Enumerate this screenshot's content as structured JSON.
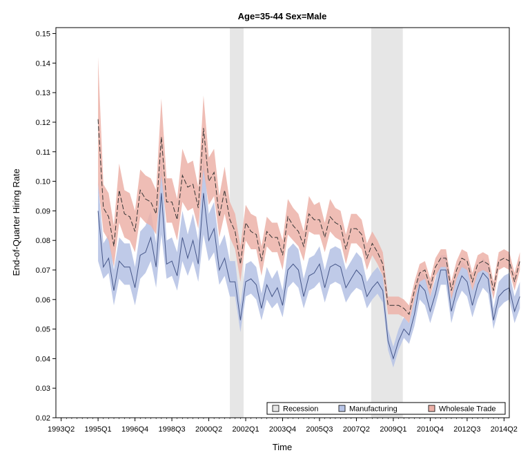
{
  "chart_data": {
    "type": "line",
    "title": "Age=35-44 Sex=Male",
    "xlabel": "Time",
    "ylabel": "End-of-Quarter Hiring Rate",
    "xlim": [
      1993.0,
      2014.5
    ],
    "ylim": [
      0.02,
      0.152
    ],
    "x_ticks": [
      {
        "t": 1993.25,
        "label": "1993Q2"
      },
      {
        "t": 1995.0,
        "label": "1995Q1"
      },
      {
        "t": 1996.75,
        "label": "1996Q4"
      },
      {
        "t": 1998.5,
        "label": "1998Q3"
      },
      {
        "t": 2000.25,
        "label": "2000Q2"
      },
      {
        "t": 2002.0,
        "label": "2002Q1"
      },
      {
        "t": 2003.75,
        "label": "2003Q4"
      },
      {
        "t": 2005.5,
        "label": "2005Q3"
      },
      {
        "t": 2007.25,
        "label": "2007Q2"
      },
      {
        "t": 2009.0,
        "label": "2009Q1"
      },
      {
        "t": 2010.75,
        "label": "2010Q4"
      },
      {
        "t": 2012.5,
        "label": "2012Q3"
      },
      {
        "t": 2014.25,
        "label": "2014Q2"
      }
    ],
    "y_ticks": [
      "0.02",
      "0.03",
      "0.04",
      "0.05",
      "0.06",
      "0.07",
      "0.08",
      "0.09",
      "0.10",
      "0.11",
      "0.12",
      "0.13",
      "0.14",
      "0.15"
    ],
    "recessions": [
      {
        "start": 2001.25,
        "end": 2001.9
      },
      {
        "start": 2007.95,
        "end": 2009.45
      }
    ],
    "grid": false,
    "legend_position": "bottom-right",
    "legend": [
      {
        "label": "Recession",
        "color": "#e6e6e6"
      },
      {
        "label": "Manufacturing",
        "color": "#b8c4e6"
      },
      {
        "label": "Wholesale Trade",
        "color": "#ecb1a8"
      }
    ],
    "x_start": "1995Q1",
    "x_step": "quarter",
    "series": [
      {
        "name": "Manufacturing",
        "color": "#445588",
        "band_color": "#b8c4e6",
        "values": [
          0.09,
          0.071,
          0.074,
          0.063,
          0.073,
          0.071,
          0.071,
          0.064,
          0.075,
          0.076,
          0.081,
          0.071,
          0.096,
          0.072,
          0.073,
          0.068,
          0.081,
          0.074,
          0.08,
          0.072,
          0.096,
          0.08,
          0.084,
          0.07,
          0.074,
          0.066,
          0.066,
          0.053,
          0.066,
          0.067,
          0.065,
          0.057,
          0.065,
          0.061,
          0.064,
          0.058,
          0.07,
          0.072,
          0.07,
          0.061,
          0.068,
          0.069,
          0.072,
          0.064,
          0.071,
          0.072,
          0.071,
          0.064,
          0.067,
          0.07,
          0.068,
          0.061,
          0.064,
          0.066,
          0.063,
          0.046,
          0.04,
          0.046,
          0.05,
          0.048,
          0.055,
          0.065,
          0.063,
          0.056,
          0.062,
          0.07,
          0.07,
          0.056,
          0.063,
          0.068,
          0.066,
          0.058,
          0.065,
          0.069,
          0.067,
          0.053,
          0.061,
          0.063,
          0.064,
          0.056,
          0.061
        ],
        "lower": [
          0.073,
          0.067,
          0.069,
          0.058,
          0.067,
          0.065,
          0.065,
          0.058,
          0.067,
          0.069,
          0.073,
          0.064,
          0.082,
          0.067,
          0.068,
          0.063,
          0.073,
          0.068,
          0.073,
          0.066,
          0.082,
          0.073,
          0.076,
          0.065,
          0.068,
          0.061,
          0.061,
          0.049,
          0.061,
          0.062,
          0.06,
          0.053,
          0.06,
          0.057,
          0.059,
          0.054,
          0.064,
          0.066,
          0.064,
          0.057,
          0.063,
          0.064,
          0.066,
          0.059,
          0.065,
          0.066,
          0.065,
          0.059,
          0.062,
          0.064,
          0.063,
          0.057,
          0.06,
          0.062,
          0.059,
          0.043,
          0.037,
          0.043,
          0.047,
          0.045,
          0.051,
          0.06,
          0.058,
          0.052,
          0.058,
          0.065,
          0.065,
          0.052,
          0.059,
          0.063,
          0.061,
          0.054,
          0.06,
          0.064,
          0.062,
          0.05,
          0.057,
          0.059,
          0.06,
          0.052,
          0.057
        ],
        "upper": [
          0.1,
          0.079,
          0.082,
          0.07,
          0.081,
          0.079,
          0.079,
          0.071,
          0.083,
          0.085,
          0.09,
          0.079,
          0.108,
          0.08,
          0.081,
          0.076,
          0.09,
          0.082,
          0.089,
          0.08,
          0.108,
          0.089,
          0.093,
          0.078,
          0.082,
          0.073,
          0.073,
          0.058,
          0.072,
          0.073,
          0.071,
          0.062,
          0.071,
          0.067,
          0.07,
          0.063,
          0.077,
          0.079,
          0.077,
          0.067,
          0.074,
          0.075,
          0.078,
          0.07,
          0.077,
          0.078,
          0.077,
          0.07,
          0.073,
          0.076,
          0.074,
          0.066,
          0.069,
          0.071,
          0.068,
          0.05,
          0.044,
          0.05,
          0.054,
          0.052,
          0.06,
          0.07,
          0.068,
          0.061,
          0.067,
          0.075,
          0.075,
          0.061,
          0.068,
          0.073,
          0.071,
          0.063,
          0.07,
          0.074,
          0.072,
          0.057,
          0.066,
          0.068,
          0.069,
          0.061,
          0.066
        ]
      },
      {
        "name": "Wholesale Trade",
        "color": "#333333",
        "band_color": "#ecb1a8",
        "values": [
          0.121,
          0.091,
          0.088,
          0.078,
          0.097,
          0.089,
          0.088,
          0.083,
          0.097,
          0.094,
          0.093,
          0.089,
          0.115,
          0.093,
          0.093,
          0.087,
          0.102,
          0.098,
          0.099,
          0.091,
          0.118,
          0.1,
          0.103,
          0.088,
          0.097,
          0.087,
          0.083,
          0.072,
          0.086,
          0.083,
          0.082,
          0.073,
          0.083,
          0.081,
          0.081,
          0.075,
          0.088,
          0.085,
          0.083,
          0.078,
          0.089,
          0.087,
          0.087,
          0.081,
          0.088,
          0.086,
          0.085,
          0.077,
          0.084,
          0.084,
          0.082,
          0.074,
          0.079,
          0.076,
          0.072,
          0.058,
          0.058,
          0.058,
          0.057,
          0.055,
          0.063,
          0.069,
          0.07,
          0.064,
          0.071,
          0.074,
          0.074,
          0.063,
          0.07,
          0.074,
          0.073,
          0.066,
          0.072,
          0.073,
          0.072,
          0.063,
          0.073,
          0.074,
          0.073,
          0.066,
          0.073
        ],
        "lower": [
          0.099,
          0.083,
          0.08,
          0.071,
          0.086,
          0.081,
          0.08,
          0.076,
          0.088,
          0.086,
          0.085,
          0.082,
          0.102,
          0.086,
          0.086,
          0.08,
          0.093,
          0.09,
          0.091,
          0.084,
          0.104,
          0.092,
          0.095,
          0.081,
          0.089,
          0.081,
          0.077,
          0.066,
          0.08,
          0.077,
          0.077,
          0.068,
          0.078,
          0.076,
          0.076,
          0.07,
          0.082,
          0.08,
          0.078,
          0.073,
          0.083,
          0.082,
          0.082,
          0.076,
          0.083,
          0.081,
          0.08,
          0.072,
          0.079,
          0.079,
          0.077,
          0.07,
          0.075,
          0.072,
          0.068,
          0.055,
          0.055,
          0.055,
          0.054,
          0.052,
          0.06,
          0.066,
          0.067,
          0.061,
          0.068,
          0.071,
          0.071,
          0.06,
          0.067,
          0.071,
          0.07,
          0.063,
          0.069,
          0.07,
          0.069,
          0.06,
          0.07,
          0.071,
          0.07,
          0.063,
          0.07
        ],
        "upper": [
          0.142,
          0.099,
          0.096,
          0.085,
          0.106,
          0.097,
          0.096,
          0.09,
          0.104,
          0.102,
          0.101,
          0.097,
          0.128,
          0.101,
          0.101,
          0.094,
          0.111,
          0.106,
          0.107,
          0.098,
          0.129,
          0.108,
          0.111,
          0.095,
          0.105,
          0.093,
          0.089,
          0.078,
          0.092,
          0.089,
          0.088,
          0.078,
          0.088,
          0.086,
          0.086,
          0.08,
          0.094,
          0.091,
          0.089,
          0.083,
          0.095,
          0.092,
          0.093,
          0.086,
          0.094,
          0.091,
          0.09,
          0.082,
          0.089,
          0.089,
          0.087,
          0.079,
          0.083,
          0.08,
          0.076,
          0.061,
          0.061,
          0.061,
          0.06,
          0.058,
          0.066,
          0.072,
          0.073,
          0.067,
          0.074,
          0.077,
          0.077,
          0.066,
          0.073,
          0.077,
          0.076,
          0.069,
          0.075,
          0.076,
          0.075,
          0.066,
          0.076,
          0.077,
          0.076,
          0.069,
          0.076
        ]
      }
    ]
  }
}
